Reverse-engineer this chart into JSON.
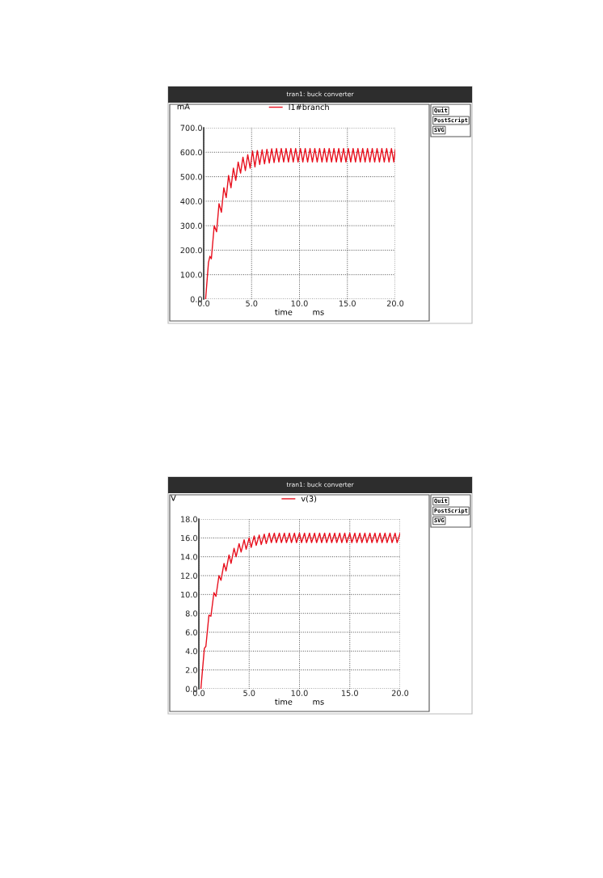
{
  "chart_data": [
    {
      "type": "line",
      "title": "tran1: buck converter",
      "ylabel": "mA",
      "xlabel": "time        ms",
      "legend": "top",
      "grid": true,
      "line_style": "solid",
      "marker": "none",
      "xlim": [
        0,
        20
      ],
      "xticks": [
        {
          "value": 0,
          "label": "0.0"
        },
        {
          "value": 5,
          "label": "5.0"
        },
        {
          "value": 10,
          "label": "10.0"
        },
        {
          "value": 15,
          "label": "15.0"
        },
        {
          "value": 20,
          "label": "20.0"
        }
      ],
      "ylim": [
        0,
        700
      ],
      "yticks": [
        {
          "value": 0,
          "label": "0.0"
        },
        {
          "value": 100,
          "label": "100.0"
        },
        {
          "value": 200,
          "label": "200.0"
        },
        {
          "value": 300,
          "label": "300.0"
        },
        {
          "value": 400,
          "label": "400.0"
        },
        {
          "value": 500,
          "label": "500.0"
        },
        {
          "value": 600,
          "label": "600.0"
        },
        {
          "value": 700,
          "label": "700.0"
        }
      ],
      "annotations": [
        "Quit",
        "PostScript",
        "SVG"
      ],
      "series": [
        {
          "name": "l1#branch",
          "color": "#e8101e",
          "x": [
            0.2,
            0.5,
            0.65,
            0.8,
            1.1,
            1.35,
            1.6,
            1.85,
            2.1,
            2.35,
            2.6,
            2.85,
            3.1,
            3.35,
            3.6,
            3.85,
            4.1,
            4.35,
            4.6,
            4.85,
            5.1,
            5.35,
            5.6,
            5.85,
            6.1,
            6.35,
            6.6,
            6.85,
            7.1,
            7.35,
            7.6,
            7.85,
            8.1,
            8.35,
            8.6,
            8.85,
            9.1,
            9.35,
            9.6,
            9.85,
            10.1,
            10.35,
            10.6,
            10.85,
            11.1,
            11.35,
            11.6,
            11.85,
            12.1,
            12.35,
            12.6,
            12.85,
            13.1,
            13.35,
            13.6,
            13.85,
            14.1,
            14.35,
            14.6,
            14.85,
            15.1,
            15.35,
            15.6,
            15.85,
            16.1,
            16.35,
            16.6,
            16.85,
            17.1,
            17.35,
            17.6,
            17.85,
            18.1,
            18.35,
            18.6,
            18.85,
            19.1,
            19.35,
            19.6,
            19.85,
            20.0
          ],
          "values": [
            0,
            150,
            175,
            165,
            300,
            275,
            390,
            355,
            455,
            415,
            505,
            455,
            535,
            485,
            560,
            515,
            580,
            525,
            590,
            535,
            605,
            540,
            607,
            550,
            610,
            553,
            612,
            556,
            614,
            558,
            615,
            560,
            615,
            560,
            615,
            560,
            615,
            560,
            615,
            560,
            615,
            560,
            615,
            560,
            615,
            560,
            615,
            560,
            615,
            560,
            615,
            560,
            615,
            560,
            615,
            560,
            615,
            560,
            615,
            560,
            615,
            560,
            615,
            560,
            615,
            560,
            615,
            560,
            615,
            560,
            615,
            560,
            615,
            560,
            615,
            560,
            615,
            560,
            615,
            560,
            610
          ]
        }
      ]
    },
    {
      "type": "line",
      "title": "tran1: buck converter",
      "ylabel": "V",
      "xlabel": "time        ms",
      "legend": "top",
      "grid": true,
      "line_style": "solid",
      "marker": "none",
      "xlim": [
        0,
        20
      ],
      "xticks": [
        {
          "value": 0,
          "label": "0.0"
        },
        {
          "value": 5,
          "label": "5.0"
        },
        {
          "value": 10,
          "label": "10.0"
        },
        {
          "value": 15,
          "label": "15.0"
        },
        {
          "value": 20,
          "label": "20.0"
        }
      ],
      "ylim": [
        0,
        18
      ],
      "yticks": [
        {
          "value": 0,
          "label": "0.0"
        },
        {
          "value": 2,
          "label": "2.0"
        },
        {
          "value": 4,
          "label": "4.0"
        },
        {
          "value": 6,
          "label": "6.0"
        },
        {
          "value": 8,
          "label": "8.0"
        },
        {
          "value": 10,
          "label": "10.0"
        },
        {
          "value": 12,
          "label": "12.0"
        },
        {
          "value": 14,
          "label": "14.0"
        },
        {
          "value": 16,
          "label": "16.0"
        },
        {
          "value": 18,
          "label": "18.0"
        }
      ],
      "annotations": [
        "Quit",
        "PostScript",
        "SVG"
      ],
      "series": [
        {
          "name": "v(3)",
          "color": "#e8101e",
          "x": [
            0.2,
            0.55,
            0.7,
            1.0,
            1.2,
            1.5,
            1.7,
            2.0,
            2.2,
            2.5,
            2.7,
            3.0,
            3.2,
            3.5,
            3.7,
            4.0,
            4.2,
            4.5,
            4.7,
            5.0,
            5.2,
            5.5,
            5.7,
            6.0,
            6.2,
            6.5,
            6.7,
            7.0,
            7.2,
            7.5,
            7.7,
            8.0,
            8.2,
            8.5,
            8.7,
            9.0,
            9.2,
            9.5,
            9.7,
            10.0,
            10.2,
            10.5,
            10.7,
            11.0,
            11.2,
            11.5,
            11.7,
            12.0,
            12.2,
            12.5,
            12.7,
            13.0,
            13.2,
            13.5,
            13.7,
            14.0,
            14.2,
            14.5,
            14.7,
            15.0,
            15.2,
            15.5,
            15.7,
            16.0,
            16.2,
            16.5,
            16.7,
            17.0,
            17.2,
            17.5,
            17.7,
            18.0,
            18.2,
            18.5,
            18.7,
            19.0,
            19.2,
            19.5,
            19.7,
            20.0
          ],
          "values": [
            0,
            4.3,
            4.5,
            7.8,
            7.7,
            10.2,
            9.8,
            12.0,
            11.5,
            13.3,
            12.5,
            14.2,
            13.3,
            14.9,
            14.0,
            15.4,
            14.5,
            15.8,
            14.8,
            16.0,
            15.0,
            16.2,
            15.2,
            16.3,
            15.3,
            16.4,
            15.4,
            16.5,
            15.5,
            16.5,
            15.5,
            16.5,
            15.5,
            16.5,
            15.5,
            16.5,
            15.5,
            16.5,
            15.5,
            16.5,
            15.5,
            16.5,
            15.5,
            16.5,
            15.5,
            16.5,
            15.5,
            16.5,
            15.5,
            16.5,
            15.5,
            16.5,
            15.5,
            16.5,
            15.5,
            16.5,
            15.5,
            16.5,
            15.5,
            16.5,
            15.5,
            16.5,
            15.5,
            16.5,
            15.5,
            16.5,
            15.5,
            16.5,
            15.5,
            16.5,
            15.5,
            16.5,
            15.5,
            16.5,
            15.5,
            16.5,
            15.5,
            16.5,
            15.5,
            16.5
          ]
        }
      ]
    }
  ]
}
